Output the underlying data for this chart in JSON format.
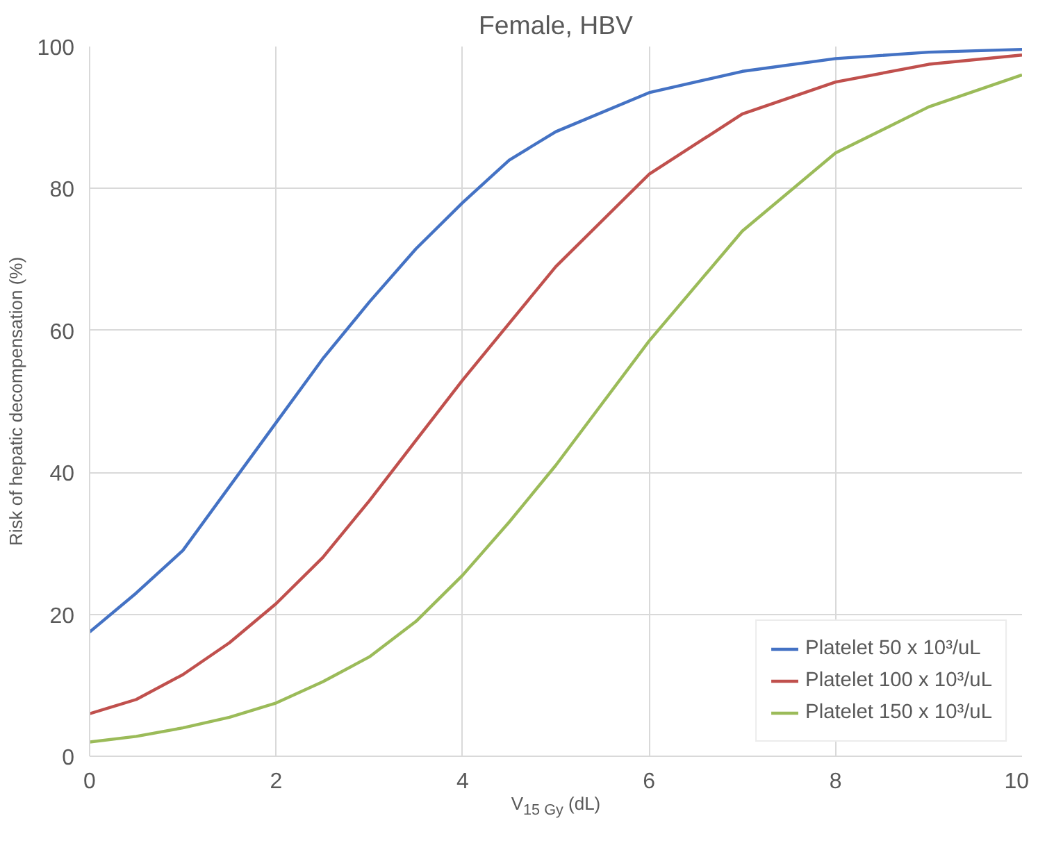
{
  "chart_data": {
    "type": "line",
    "title": "Female, HBV",
    "xlabel": "V$_{15 Gy}$ (dL)",
    "ylabel": "Risk of hepatic decompensation (%)",
    "x": [
      0,
      0.5,
      1,
      1.5,
      2,
      2.5,
      3,
      3.5,
      4,
      4.5,
      5,
      6,
      7,
      8,
      9,
      10
    ],
    "series": [
      {
        "name": "Platelet 50 x 10³/uL",
        "color": "#4472c4",
        "values": [
          17.5,
          23,
          29,
          38,
          47,
          56,
          64,
          71.5,
          78,
          84,
          88,
          93.5,
          96.5,
          98.3,
          99.2,
          99.6
        ]
      },
      {
        "name": "Platelet 100 x 10³/uL",
        "color": "#c0504d",
        "values": [
          6,
          8,
          11.5,
          16,
          21.5,
          28,
          36,
          44.5,
          53,
          61,
          69,
          82,
          90.5,
          95,
          97.5,
          98.8
        ]
      },
      {
        "name": "Platelet 150 x 10³/uL",
        "color": "#9bbb59",
        "values": [
          2,
          2.8,
          4,
          5.5,
          7.5,
          10.5,
          14,
          19,
          25.5,
          33,
          41,
          58.5,
          74,
          85,
          91.5,
          96
        ]
      }
    ],
    "xlim": [
      0,
      10
    ],
    "ylim": [
      0,
      100
    ],
    "xticks": [
      0,
      2,
      4,
      6,
      8,
      10
    ],
    "yticks": [
      0,
      20,
      40,
      60,
      80,
      100
    ],
    "grid": true,
    "legend": "bottom right",
    "marker": "none",
    "line_style": "solid"
  }
}
